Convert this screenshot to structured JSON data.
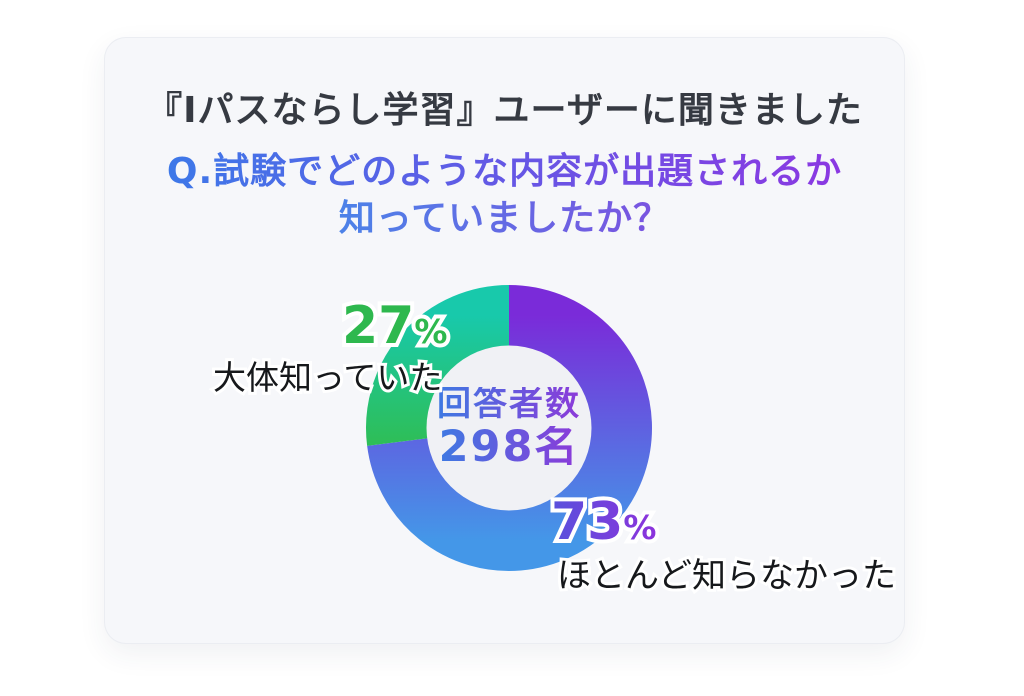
{
  "header": {
    "title": "『Iパスならし学習』ユーザーに聞きました",
    "question_line1": "Q.試験でどのような内容が出題されるか",
    "question_line2": "知っていましたか？"
  },
  "chart_data": {
    "type": "pie",
    "variant": "donut",
    "title": "『Iパスならし学習』ユーザーに聞きました",
    "question": "Q.試験でどのような内容が出題されるか知っていましたか？",
    "unit": "%",
    "start_angle_deg": 0,
    "direction": "clockwise",
    "legend_position": "callout-labels",
    "center_label": {
      "line1": "回答者数",
      "line2": "298名"
    },
    "segments": [
      {
        "label": "ほとんど知らなかった",
        "value": 73,
        "suffix": "%",
        "gradient": [
          "#7A2BD9",
          "#4497E8"
        ]
      },
      {
        "label": "大体知っていた",
        "value": 27,
        "suffix": "%",
        "gradient": [
          "#18C9AB",
          "#2EBE58"
        ]
      }
    ]
  },
  "colors": {
    "page_bg": "#FFFFFF",
    "card_bg": "#F6F7FA",
    "hole_color": "#F0F1F5",
    "title_color": "#363A42",
    "q_grad_start": "#3D78E8",
    "q_grad_end": "#8B38E2",
    "q2_grad_start": "#4C82E8",
    "q2_grad_end": "#7C52E0",
    "pct27_color": "#2EB84E",
    "pct73_grad_start": "#5951DC",
    "pct73_grad_end": "#8C33DC",
    "center_grad_start": "#3E79E2",
    "center_grad_end": "#8C3AD9",
    "label_color": "#16181B"
  }
}
